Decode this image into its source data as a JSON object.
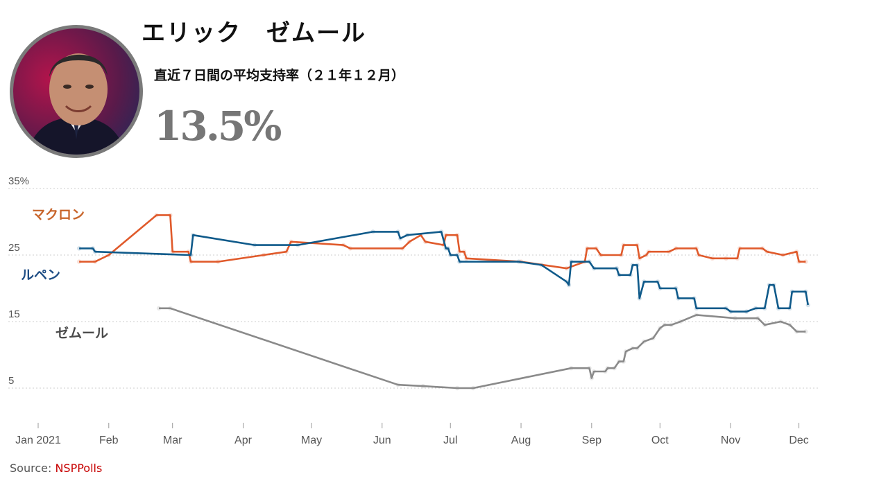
{
  "header": {
    "name": "エリック　ゼムール",
    "subtitle": "直近７日間の平均支持率（２１年１２月）",
    "value": "13.5%"
  },
  "source": {
    "label": "Source: ",
    "link": "NSPPolls"
  },
  "colors": {
    "macron": "#e05a2b",
    "lepen": "#0f5a8a",
    "zemmour": "#8a8a8a",
    "grid": "#cccccc"
  },
  "chart_data": {
    "type": "line",
    "title": "",
    "xlabel": "",
    "ylabel": "",
    "ylim": [
      0,
      35
    ],
    "yticks": [
      5,
      15,
      25,
      35
    ],
    "ytick_labels": [
      "5",
      "15",
      "25",
      "35%"
    ],
    "x_range": [
      "2021-01-01",
      "2021-12-06"
    ],
    "xticks": [
      {
        "label": "Jan 2021",
        "date": "2021-01-01"
      },
      {
        "label": "Feb",
        "date": "2021-02-01"
      },
      {
        "label": "Mar",
        "date": "2021-03-01"
      },
      {
        "label": "Apr",
        "date": "2021-04-01"
      },
      {
        "label": "May",
        "date": "2021-05-01"
      },
      {
        "label": "Jun",
        "date": "2021-06-01"
      },
      {
        "label": "Jul",
        "date": "2021-07-01"
      },
      {
        "label": "Aug",
        "date": "2021-08-01"
      },
      {
        "label": "Sep",
        "date": "2021-09-01"
      },
      {
        "label": "Oct",
        "date": "2021-10-01"
      },
      {
        "label": "Nov",
        "date": "2021-11-01"
      },
      {
        "label": "Dec",
        "date": "2021-12-01"
      }
    ],
    "grid": true,
    "series": [
      {
        "name": "マクロン",
        "color": "#e05a2b",
        "points": [
          [
            "2021-01-19",
            24
          ],
          [
            "2021-01-26",
            24
          ],
          [
            "2021-02-01",
            25
          ],
          [
            "2021-02-22",
            31
          ],
          [
            "2021-02-28",
            31
          ],
          [
            "2021-03-01",
            25.5
          ],
          [
            "2021-03-08",
            25.5
          ],
          [
            "2021-03-09",
            24
          ],
          [
            "2021-03-21",
            24
          ],
          [
            "2021-04-10",
            25
          ],
          [
            "2021-04-20",
            25.5
          ],
          [
            "2021-04-22",
            27
          ],
          [
            "2021-05-15",
            26.5
          ],
          [
            "2021-05-18",
            26
          ],
          [
            "2021-06-10",
            26
          ],
          [
            "2021-06-13",
            27
          ],
          [
            "2021-06-18",
            28
          ],
          [
            "2021-06-20",
            27
          ],
          [
            "2021-06-28",
            26.5
          ],
          [
            "2021-06-29",
            28
          ],
          [
            "2021-07-04",
            28
          ],
          [
            "2021-07-05",
            25.5
          ],
          [
            "2021-07-07",
            25.5
          ],
          [
            "2021-07-08",
            24.5
          ],
          [
            "2021-08-01",
            24
          ],
          [
            "2021-08-21",
            23
          ],
          [
            "2021-08-29",
            24
          ],
          [
            "2021-08-30",
            26
          ],
          [
            "2021-09-03",
            26
          ],
          [
            "2021-09-05",
            25
          ],
          [
            "2021-09-14",
            25
          ],
          [
            "2021-09-15",
            26.5
          ],
          [
            "2021-09-21",
            26.5
          ],
          [
            "2021-09-22",
            24.5
          ],
          [
            "2021-09-25",
            25
          ],
          [
            "2021-09-26",
            25.5
          ],
          [
            "2021-10-05",
            25.5
          ],
          [
            "2021-10-08",
            26
          ],
          [
            "2021-10-17",
            26
          ],
          [
            "2021-10-18",
            25
          ],
          [
            "2021-10-24",
            24.5
          ],
          [
            "2021-10-30",
            24.5
          ],
          [
            "2021-11-04",
            24.5
          ],
          [
            "2021-11-05",
            26
          ],
          [
            "2021-11-15",
            26
          ],
          [
            "2021-11-17",
            25.5
          ],
          [
            "2021-11-24",
            25
          ],
          [
            "2021-11-30",
            25.5
          ],
          [
            "2021-12-01",
            24
          ],
          [
            "2021-12-04",
            24
          ]
        ]
      },
      {
        "name": "ルペン",
        "color": "#0f5a8a",
        "points": [
          [
            "2021-01-19",
            26
          ],
          [
            "2021-01-25",
            26
          ],
          [
            "2021-01-26",
            25.5
          ],
          [
            "2021-03-09",
            25
          ],
          [
            "2021-03-10",
            28
          ],
          [
            "2021-04-06",
            26.5
          ],
          [
            "2021-04-25",
            26.5
          ],
          [
            "2021-05-28",
            28.5
          ],
          [
            "2021-06-08",
            28.5
          ],
          [
            "2021-06-09",
            27.5
          ],
          [
            "2021-06-12",
            28
          ],
          [
            "2021-06-27",
            28.5
          ],
          [
            "2021-06-29",
            26
          ],
          [
            "2021-06-30",
            26
          ],
          [
            "2021-07-01",
            25
          ],
          [
            "2021-07-04",
            25
          ],
          [
            "2021-07-05",
            24
          ],
          [
            "2021-07-31",
            24
          ],
          [
            "2021-08-10",
            23.5
          ],
          [
            "2021-08-21",
            21
          ],
          [
            "2021-08-22",
            20.5
          ],
          [
            "2021-08-23",
            24
          ],
          [
            "2021-08-31",
            24
          ],
          [
            "2021-09-02",
            23
          ],
          [
            "2021-09-12",
            23
          ],
          [
            "2021-09-13",
            22
          ],
          [
            "2021-09-18",
            22
          ],
          [
            "2021-09-19",
            23.5
          ],
          [
            "2021-09-21",
            23.5
          ],
          [
            "2021-09-22",
            18.5
          ],
          [
            "2021-09-24",
            21
          ],
          [
            "2021-09-30",
            21
          ],
          [
            "2021-10-01",
            20
          ],
          [
            "2021-10-08",
            20
          ],
          [
            "2021-10-09",
            18.5
          ],
          [
            "2021-10-16",
            18.5
          ],
          [
            "2021-10-17",
            17
          ],
          [
            "2021-10-30",
            17
          ],
          [
            "2021-11-01",
            16.5
          ],
          [
            "2021-11-08",
            16.5
          ],
          [
            "2021-11-12",
            17
          ],
          [
            "2021-11-16",
            17
          ],
          [
            "2021-11-18",
            20.5
          ],
          [
            "2021-11-20",
            20.5
          ],
          [
            "2021-11-22",
            17
          ],
          [
            "2021-11-27",
            17
          ],
          [
            "2021-11-28",
            19.5
          ],
          [
            "2021-12-04",
            19.5
          ],
          [
            "2021-12-05",
            17.5
          ]
        ]
      },
      {
        "name": "ゼムール",
        "color": "#8a8a8a",
        "points": [
          [
            "2021-02-23",
            17
          ],
          [
            "2021-02-28",
            17
          ],
          [
            "2021-06-08",
            5.5
          ],
          [
            "2021-06-19",
            5.3
          ],
          [
            "2021-07-04",
            5
          ],
          [
            "2021-07-11",
            5
          ],
          [
            "2021-08-23",
            8
          ],
          [
            "2021-08-31",
            8
          ],
          [
            "2021-09-01",
            6.5
          ],
          [
            "2021-09-02",
            7.5
          ],
          [
            "2021-09-07",
            7.5
          ],
          [
            "2021-09-08",
            8
          ],
          [
            "2021-09-11",
            8
          ],
          [
            "2021-09-13",
            9
          ],
          [
            "2021-09-15",
            9
          ],
          [
            "2021-09-16",
            10.5
          ],
          [
            "2021-09-19",
            11
          ],
          [
            "2021-09-21",
            11
          ],
          [
            "2021-09-24",
            12
          ],
          [
            "2021-09-28",
            12.5
          ],
          [
            "2021-10-01",
            14
          ],
          [
            "2021-10-03",
            14.5
          ],
          [
            "2021-10-06",
            14.5
          ],
          [
            "2021-10-10",
            15
          ],
          [
            "2021-10-17",
            16
          ],
          [
            "2021-11-03",
            15.5
          ],
          [
            "2021-11-13",
            15.5
          ],
          [
            "2021-11-16",
            14.5
          ],
          [
            "2021-11-23",
            15
          ],
          [
            "2021-11-27",
            14.5
          ],
          [
            "2021-11-30",
            13.5
          ],
          [
            "2021-12-04",
            13.5
          ]
        ]
      }
    ]
  }
}
